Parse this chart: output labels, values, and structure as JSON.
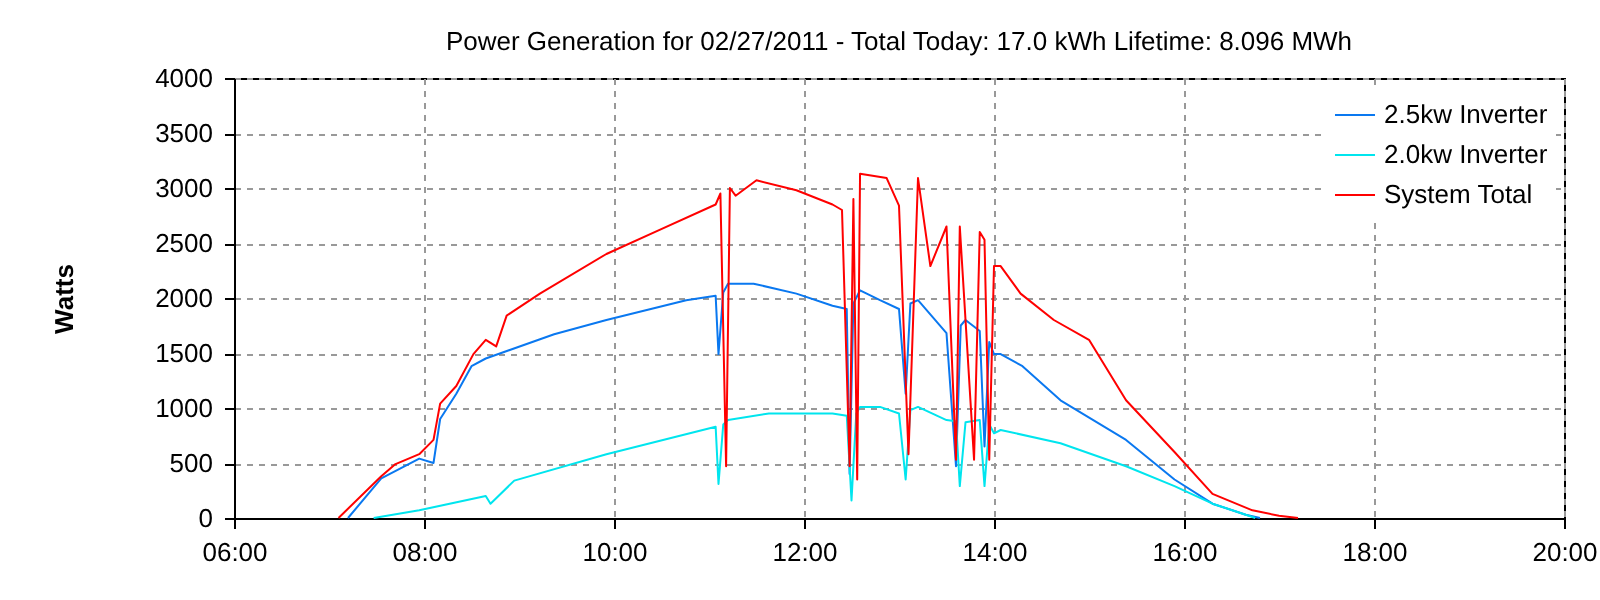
{
  "chart_data": {
    "type": "line",
    "title": "Power Generation for 02/27/2011 - Total Today: 17.0 kWh   Lifetime: 8.096 MWh",
    "ylabel": "Watts",
    "xlim": [
      6,
      20
    ],
    "xticks": [
      {
        "value": 6,
        "label": "06:00"
      },
      {
        "value": 8,
        "label": "08:00"
      },
      {
        "value": 10,
        "label": "10:00"
      },
      {
        "value": 12,
        "label": "12:00"
      },
      {
        "value": 14,
        "label": "14:00"
      },
      {
        "value": 16,
        "label": "16:00"
      },
      {
        "value": 18,
        "label": "18:00"
      },
      {
        "value": 20,
        "label": "20:00"
      }
    ],
    "ylim": [
      0,
      4000
    ],
    "yticks": [
      0,
      500,
      1000,
      1500,
      2000,
      2500,
      3000,
      3500,
      4000
    ],
    "grid": true,
    "legend": "top right",
    "line_style": "solid",
    "marker": "none",
    "series": [
      {
        "name": "2.5kw Inverter",
        "color": "#0a78f0",
        "x": [
          7.2,
          7.55,
          7.95,
          8.1,
          8.17,
          8.34,
          8.5,
          8.65,
          9.37,
          9.92,
          10.76,
          11.07,
          11.1,
          11.15,
          11.2,
          11.47,
          11.92,
          12.3,
          12.45,
          12.48,
          12.52,
          12.59,
          12.8,
          13.0,
          13.07,
          13.12,
          13.2,
          13.5,
          13.6,
          13.65,
          13.7,
          13.85,
          13.9,
          13.95,
          14.0,
          14.07,
          14.3,
          14.7,
          15.39,
          15.9,
          16.3,
          16.65,
          16.8
        ],
        "values": [
          0,
          360,
          540,
          500,
          900,
          1130,
          1380,
          1450,
          1670,
          1800,
          1980,
          2020,
          1490,
          2050,
          2130,
          2130,
          2040,
          1930,
          1900,
          400,
          1950,
          2070,
          1980,
          1900,
          1130,
          1950,
          1980,
          1680,
          470,
          1750,
          1800,
          1700,
          650,
          1600,
          1490,
          1490,
          1380,
          1070,
          710,
          350,
          130,
          30,
          0
        ]
      },
      {
        "name": "2.0kw Inverter",
        "color": "#00e5ee",
        "x": [
          7.47,
          7.95,
          8.65,
          8.7,
          8.95,
          9.92,
          11.07,
          11.1,
          11.15,
          11.2,
          11.63,
          12.3,
          12.45,
          12.5,
          12.55,
          12.59,
          12.8,
          13.0,
          13.07,
          13.12,
          13.2,
          13.5,
          13.6,
          13.64,
          13.7,
          13.85,
          13.9,
          13.95,
          14.0,
          14.07,
          14.7,
          15.39,
          15.9,
          16.3,
          16.65,
          16.75
        ],
        "values": [
          0,
          70,
          200,
          130,
          340,
          580,
          830,
          310,
          850,
          890,
          950,
          950,
          930,
          160,
          950,
          1010,
          1010,
          950,
          350,
          980,
          1010,
          890,
          880,
          290,
          870,
          890,
          290,
          850,
          770,
          800,
          680,
          470,
          290,
          130,
          30,
          0
        ]
      },
      {
        "name": "System Total",
        "color": "#ff0000",
        "x": [
          7.1,
          7.55,
          7.7,
          7.95,
          8.1,
          8.17,
          8.34,
          8.52,
          8.65,
          8.76,
          8.87,
          9.22,
          9.92,
          10.48,
          11.07,
          11.12,
          11.18,
          11.22,
          11.28,
          11.5,
          11.92,
          12.3,
          12.4,
          12.48,
          12.52,
          12.56,
          12.59,
          12.87,
          13.0,
          13.1,
          13.2,
          13.33,
          13.5,
          13.6,
          13.64,
          13.79,
          13.85,
          13.9,
          13.95,
          14.0,
          14.07,
          14.28,
          14.63,
          15.0,
          15.39,
          15.9,
          16.3,
          16.72,
          17.0,
          17.2
        ],
        "values": [
          0,
          380,
          490,
          580,
          710,
          1040,
          1200,
          1490,
          1620,
          1560,
          1840,
          2040,
          2400,
          2620,
          2850,
          2950,
          470,
          3000,
          2930,
          3070,
          2980,
          2850,
          2800,
          470,
          2900,
          350,
          3130,
          3090,
          2840,
          580,
          3090,
          2290,
          2650,
          530,
          2650,
          530,
          2600,
          2530,
          530,
          2290,
          2290,
          2040,
          1800,
          1620,
          1070,
          600,
          220,
          70,
          20,
          0
        ]
      }
    ]
  }
}
